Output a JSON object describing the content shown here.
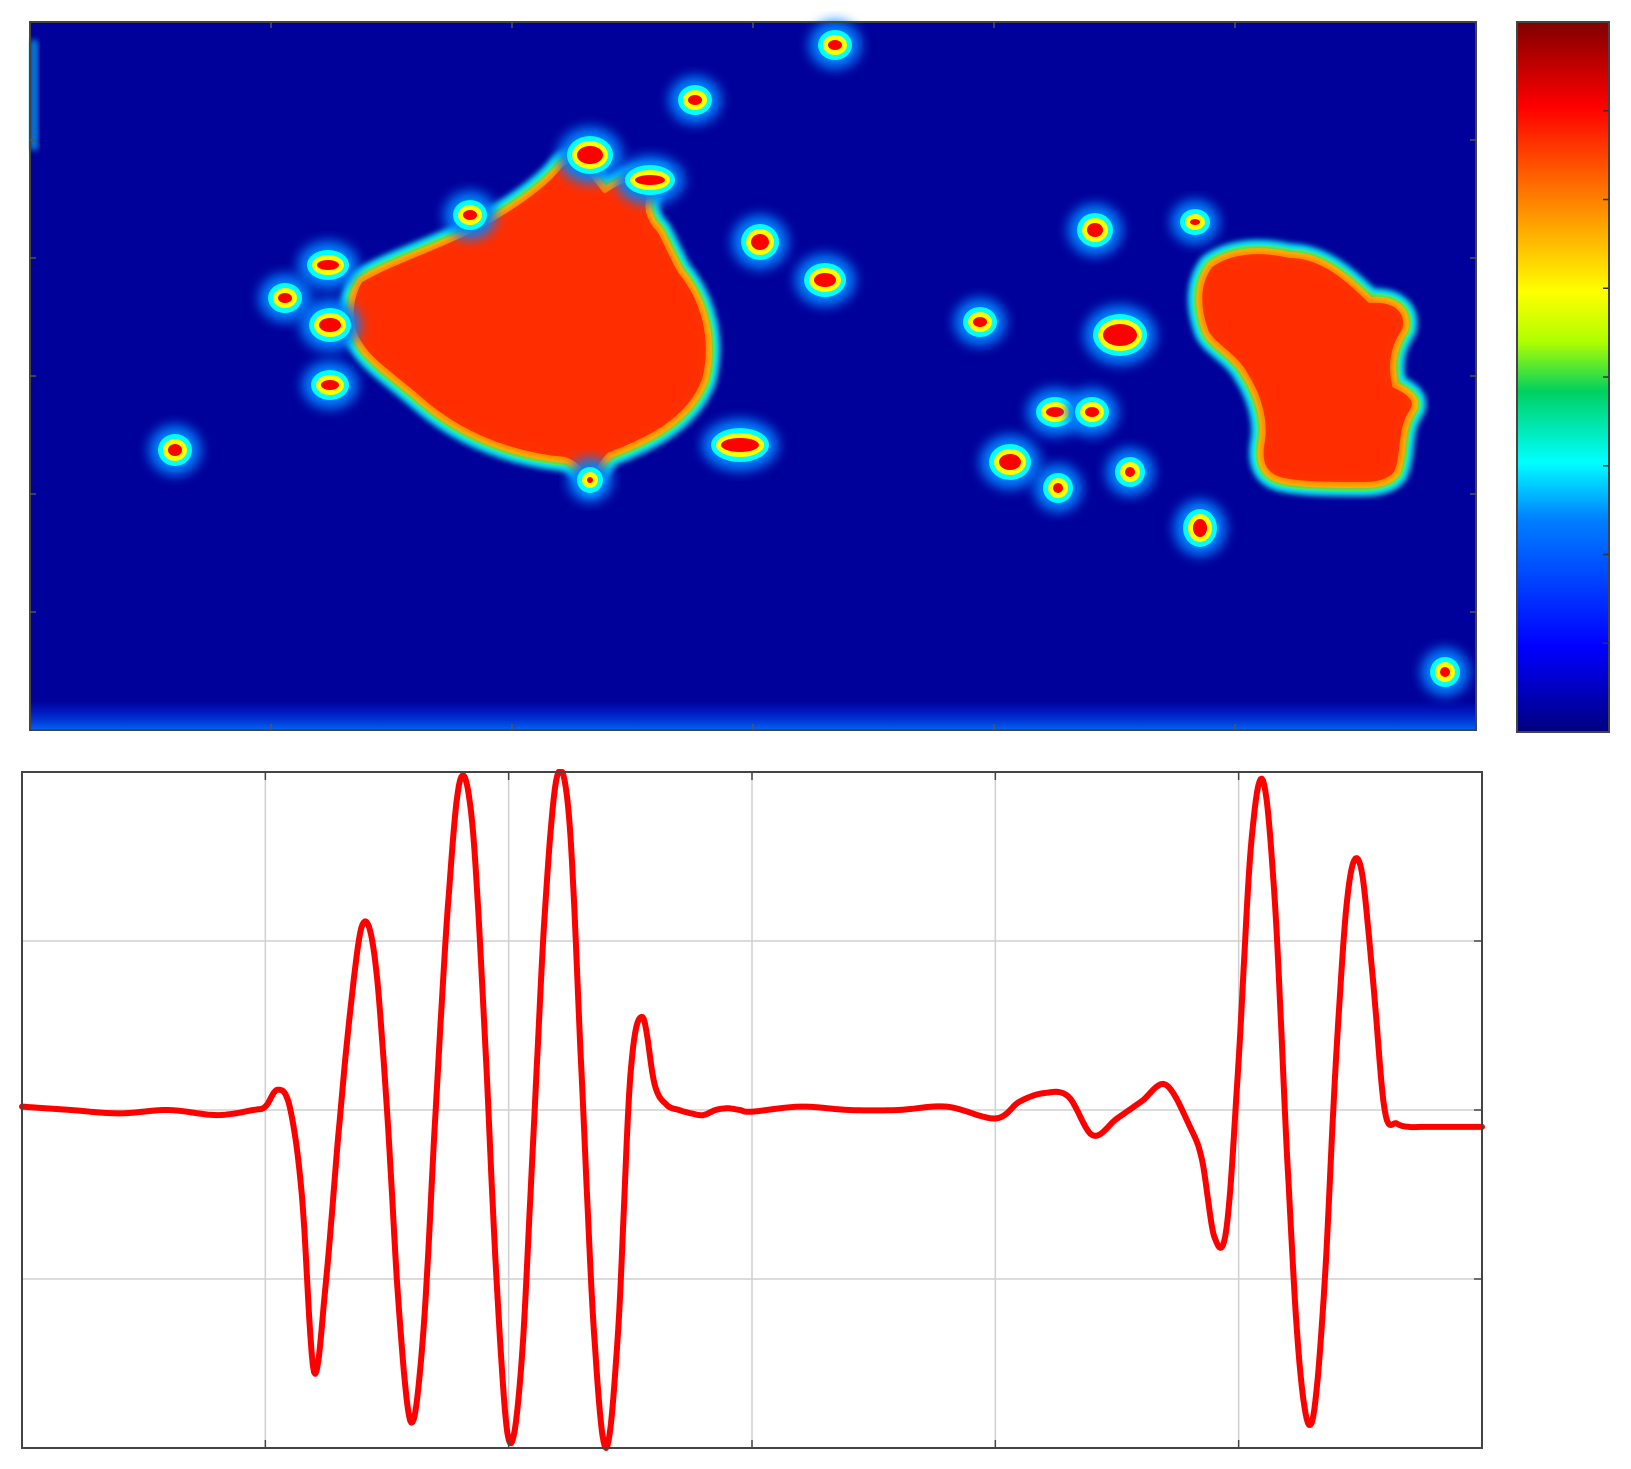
{
  "figure": {
    "panels": [
      "heatmap",
      "signal"
    ]
  },
  "chart_data": [
    {
      "type": "heatmap",
      "title": "",
      "xlabel": "",
      "ylabel": "",
      "colormap": "jet",
      "colormap_stops": [
        "#00007f",
        "#0000ff",
        "#0080ff",
        "#00ffff",
        "#00d060",
        "#b0ff00",
        "#ffff00",
        "#ff8000",
        "#ff0000",
        "#800000"
      ],
      "background_level": 0.12,
      "grid": false,
      "x_tick_count": 7,
      "y_tick_count": 6,
      "colorbar": {
        "position": "right",
        "tick_count": 8,
        "labels": []
      },
      "regions": [
        {
          "name": "large-left-feature",
          "level": 0.9
        },
        {
          "name": "large-right-feature",
          "level": 0.9
        },
        {
          "name": "small-features",
          "level": 0.85
        }
      ]
    },
    {
      "type": "line",
      "title": "",
      "xlabel": "",
      "ylabel": "",
      "xlim": [
        0,
        6
      ],
      "ylim": [
        -2,
        2
      ],
      "x_ticks": [
        0,
        1,
        2,
        3,
        4,
        5,
        6
      ],
      "y_ticks": [
        -2,
        -1,
        0,
        1,
        2
      ],
      "grid": true,
      "series": [
        {
          "color": "#ff0000",
          "x": [
            0,
            0.2,
            0.4,
            0.6,
            0.8,
            0.95,
            1.0,
            1.05,
            1.1,
            1.15,
            1.2,
            1.25,
            1.3,
            1.35,
            1.4,
            1.45,
            1.5,
            1.55,
            1.6,
            1.65,
            1.7,
            1.75,
            1.8,
            1.85,
            1.9,
            1.95,
            2.0,
            2.05,
            2.1,
            2.15,
            2.2,
            2.25,
            2.3,
            2.35,
            2.4,
            2.45,
            2.5,
            2.55,
            2.6,
            2.65,
            2.7,
            2.75,
            2.8,
            2.85,
            2.9,
            2.95,
            3.0,
            3.2,
            3.4,
            3.6,
            3.8,
            4.0,
            4.1,
            4.2,
            4.3,
            4.4,
            4.5,
            4.6,
            4.7,
            4.8,
            4.85,
            4.9,
            4.95,
            5.0,
            5.05,
            5.1,
            5.15,
            5.2,
            5.25,
            5.3,
            5.35,
            5.4,
            5.45,
            5.5,
            5.55,
            5.6,
            5.65,
            5.7,
            5.75,
            5.8,
            5.85,
            5.9,
            6.0
          ],
          "y": [
            0.02,
            0.0,
            -0.02,
            0.0,
            -0.03,
            0.0,
            0.02,
            0.12,
            0.02,
            -0.5,
            -1.55,
            -1.0,
            -0.15,
            0.6,
            1.1,
            0.9,
            0.0,
            -1.2,
            -1.85,
            -1.3,
            0.0,
            1.2,
            1.95,
            1.7,
            0.5,
            -1.0,
            -1.95,
            -1.55,
            -0.2,
            1.2,
            1.98,
            1.7,
            0.2,
            -1.3,
            -2.0,
            -1.3,
            0.2,
            0.55,
            0.15,
            0.03,
            0.0,
            -0.02,
            -0.03,
            0.0,
            0.01,
            0.0,
            -0.01,
            0.02,
            0.0,
            0.0,
            0.02,
            -0.05,
            0.05,
            0.1,
            0.08,
            -0.15,
            -0.05,
            0.05,
            0.15,
            -0.1,
            -0.3,
            -0.75,
            -0.7,
            0.3,
            1.55,
            1.95,
            1.2,
            -0.3,
            -1.5,
            -1.85,
            -1.1,
            0.3,
            1.3,
            1.45,
            0.8,
            0.0,
            -0.08,
            -0.1,
            -0.1,
            -0.1,
            -0.1,
            -0.1,
            -0.1
          ]
        }
      ]
    }
  ]
}
